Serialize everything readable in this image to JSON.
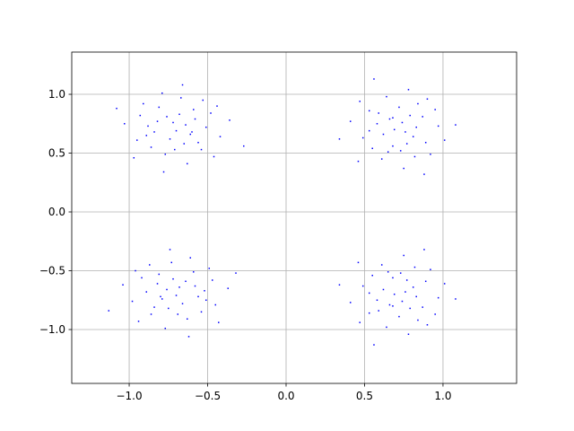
{
  "chart_data": {
    "type": "scatter",
    "xlim": [
      -1.366,
      1.469
    ],
    "ylim": [
      -1.458,
      1.359
    ],
    "xticks": [
      {
        "value": -1.0,
        "label": "−1.0"
      },
      {
        "value": -0.5,
        "label": "−0.5"
      },
      {
        "value": 0.0,
        "label": "0.0"
      },
      {
        "value": 0.5,
        "label": "0.5"
      },
      {
        "value": 1.0,
        "label": "1.0"
      }
    ],
    "yticks": [
      {
        "value": -1.0,
        "label": "−1.0"
      },
      {
        "value": -0.5,
        "label": "−0.5"
      },
      {
        "value": 0.0,
        "label": "0.0"
      },
      {
        "value": 0.5,
        "label": "0.5"
      },
      {
        "value": 1.0,
        "label": "1.0"
      }
    ],
    "grid": true,
    "series": [
      {
        "color": "#0000ff",
        "x": [
          -0.65,
          -0.88,
          -0.58,
          -0.77,
          -0.48,
          -0.72,
          -0.61,
          -0.95,
          -0.54,
          -0.81,
          -0.67,
          -0.84,
          -0.42,
          -0.7,
          -0.76,
          -0.51,
          -0.91,
          -0.63,
          -1.03,
          -0.59,
          -0.74,
          -0.56,
          -0.86,
          -0.36,
          -0.79,
          -0.68,
          -0.97,
          -0.46,
          -0.82,
          -0.64,
          -0.71,
          -0.53,
          -0.89,
          -0.27,
          -1.08,
          -0.6,
          -0.78,
          -0.44,
          -0.93,
          -0.66
        ],
        "y": [
          0.58,
          0.73,
          0.79,
          0.49,
          0.84,
          0.76,
          0.66,
          0.61,
          0.53,
          0.89,
          0.97,
          0.68,
          0.64,
          0.69,
          0.81,
          0.72,
          0.92,
          0.41,
          0.75,
          0.87,
          0.62,
          0.59,
          0.55,
          0.78,
          1.01,
          0.83,
          0.46,
          0.47,
          0.77,
          0.74,
          0.53,
          0.95,
          0.65,
          0.56,
          0.88,
          0.68,
          0.34,
          0.9,
          0.82,
          1.08
        ]
      },
      {
        "color": "#0000ff",
        "x": [
          0.58,
          0.73,
          0.79,
          0.49,
          0.84,
          0.76,
          0.66,
          0.61,
          0.53,
          0.89,
          0.97,
          0.68,
          0.64,
          0.69,
          0.81,
          0.72,
          0.92,
          0.41,
          0.75,
          0.87,
          0.62,
          0.59,
          0.55,
          0.78,
          1.01,
          0.83,
          0.46,
          0.47,
          0.77,
          0.74,
          0.53,
          0.95,
          0.65,
          0.56,
          0.88,
          0.68,
          0.34,
          0.9,
          0.82,
          1.08
        ],
        "y": [
          0.75,
          0.52,
          0.82,
          0.63,
          0.92,
          0.68,
          0.79,
          0.45,
          0.86,
          0.59,
          0.73,
          0.56,
          0.98,
          0.7,
          0.64,
          0.89,
          0.49,
          0.77,
          0.37,
          0.81,
          0.66,
          0.84,
          0.54,
          1.04,
          0.61,
          0.72,
          0.43,
          0.94,
          0.58,
          0.76,
          0.69,
          0.87,
          0.51,
          1.13,
          0.32,
          0.8,
          0.62,
          0.96,
          0.47,
          0.74
        ]
      },
      {
        "color": "#0000ff",
        "x": [
          -0.75,
          -0.52,
          -0.82,
          -0.63,
          -0.92,
          -0.68,
          -0.79,
          -0.45,
          -0.86,
          -0.59,
          -0.73,
          -0.56,
          -0.98,
          -0.7,
          -0.64,
          -0.89,
          -0.49,
          -0.77,
          -0.37,
          -0.81,
          -0.66,
          -0.84,
          -0.54,
          -1.04,
          -0.61,
          -0.72,
          -0.43,
          -0.94,
          -0.58,
          -0.76,
          -0.69,
          -0.87,
          -0.51,
          -1.13,
          -0.32,
          -0.8,
          -0.62,
          -0.96,
          -0.47,
          -0.74
        ],
        "y": [
          -0.82,
          -0.67,
          -0.61,
          -0.91,
          -0.56,
          -0.64,
          -0.74,
          -0.79,
          -0.87,
          -0.51,
          -0.43,
          -0.72,
          -0.76,
          -0.71,
          -0.59,
          -0.68,
          -0.48,
          -0.99,
          -0.65,
          -0.53,
          -0.78,
          -0.81,
          -0.85,
          -0.62,
          -0.39,
          -0.57,
          -0.94,
          -0.93,
          -0.63,
          -0.66,
          -0.87,
          -0.45,
          -0.75,
          -0.84,
          -0.52,
          -0.72,
          -1.06,
          -0.5,
          -0.58,
          -0.32
        ]
      },
      {
        "color": "#0000ff",
        "x": [
          0.58,
          0.73,
          0.79,
          0.49,
          0.84,
          0.76,
          0.66,
          0.61,
          0.53,
          0.89,
          0.97,
          0.68,
          0.64,
          0.69,
          0.81,
          0.72,
          0.92,
          0.41,
          0.75,
          0.87,
          0.62,
          0.59,
          0.55,
          0.78,
          1.01,
          0.83,
          0.46,
          0.47,
          0.77,
          0.74,
          0.53,
          0.95,
          0.65,
          0.56,
          0.88,
          0.68,
          0.34,
          0.9,
          0.82,
          1.08
        ],
        "y": [
          -0.75,
          -0.52,
          -0.82,
          -0.63,
          -0.92,
          -0.68,
          -0.79,
          -0.45,
          -0.86,
          -0.59,
          -0.73,
          -0.56,
          -0.98,
          -0.7,
          -0.64,
          -0.89,
          -0.49,
          -0.77,
          -0.37,
          -0.81,
          -0.66,
          -0.84,
          -0.54,
          -1.04,
          -0.61,
          -0.72,
          -0.43,
          -0.94,
          -0.58,
          -0.76,
          -0.69,
          -0.87,
          -0.51,
          -1.13,
          -0.32,
          -0.8,
          -0.62,
          -0.96,
          -0.47,
          -0.74
        ]
      }
    ]
  }
}
